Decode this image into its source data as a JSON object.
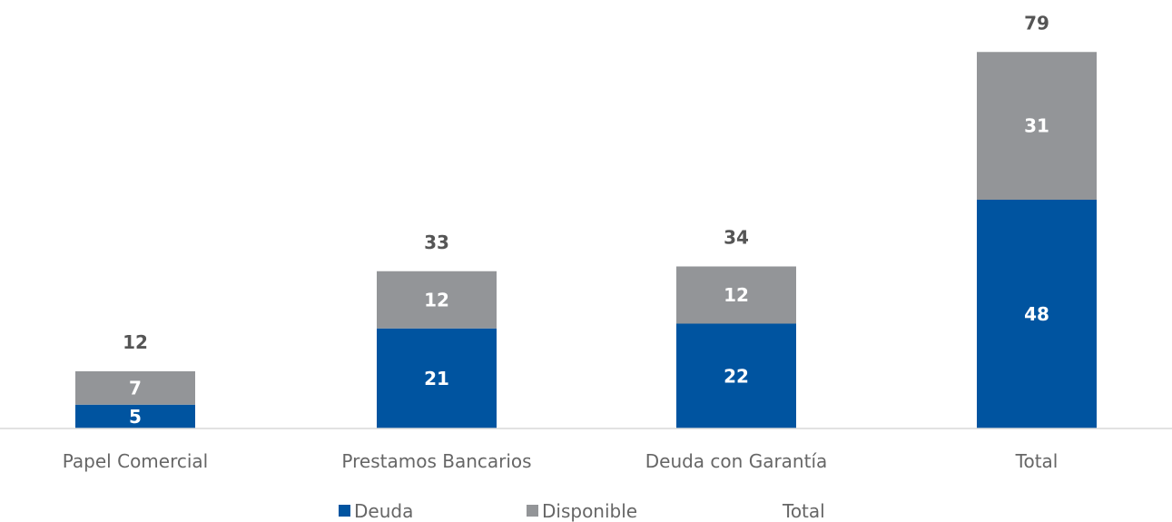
{
  "chart_data": {
    "type": "bar",
    "stacked": true,
    "categories": [
      "Papel Comercial",
      "Prestamos Bancarios",
      "Deuda con Garantía",
      "Total"
    ],
    "series": [
      {
        "name": "Deuda",
        "values": [
          5,
          21,
          22,
          48
        ],
        "color": "#0054A0"
      },
      {
        "name": "Disponible",
        "values": [
          7,
          12,
          12,
          31
        ],
        "color": "#939598"
      }
    ],
    "totals": {
      "name": "Total",
      "values": [
        12,
        33,
        34,
        79
      ]
    },
    "ylim": [
      0,
      80
    ],
    "grid": false,
    "legend_position": "bottom",
    "title": "",
    "xlabel": "",
    "ylabel": ""
  }
}
